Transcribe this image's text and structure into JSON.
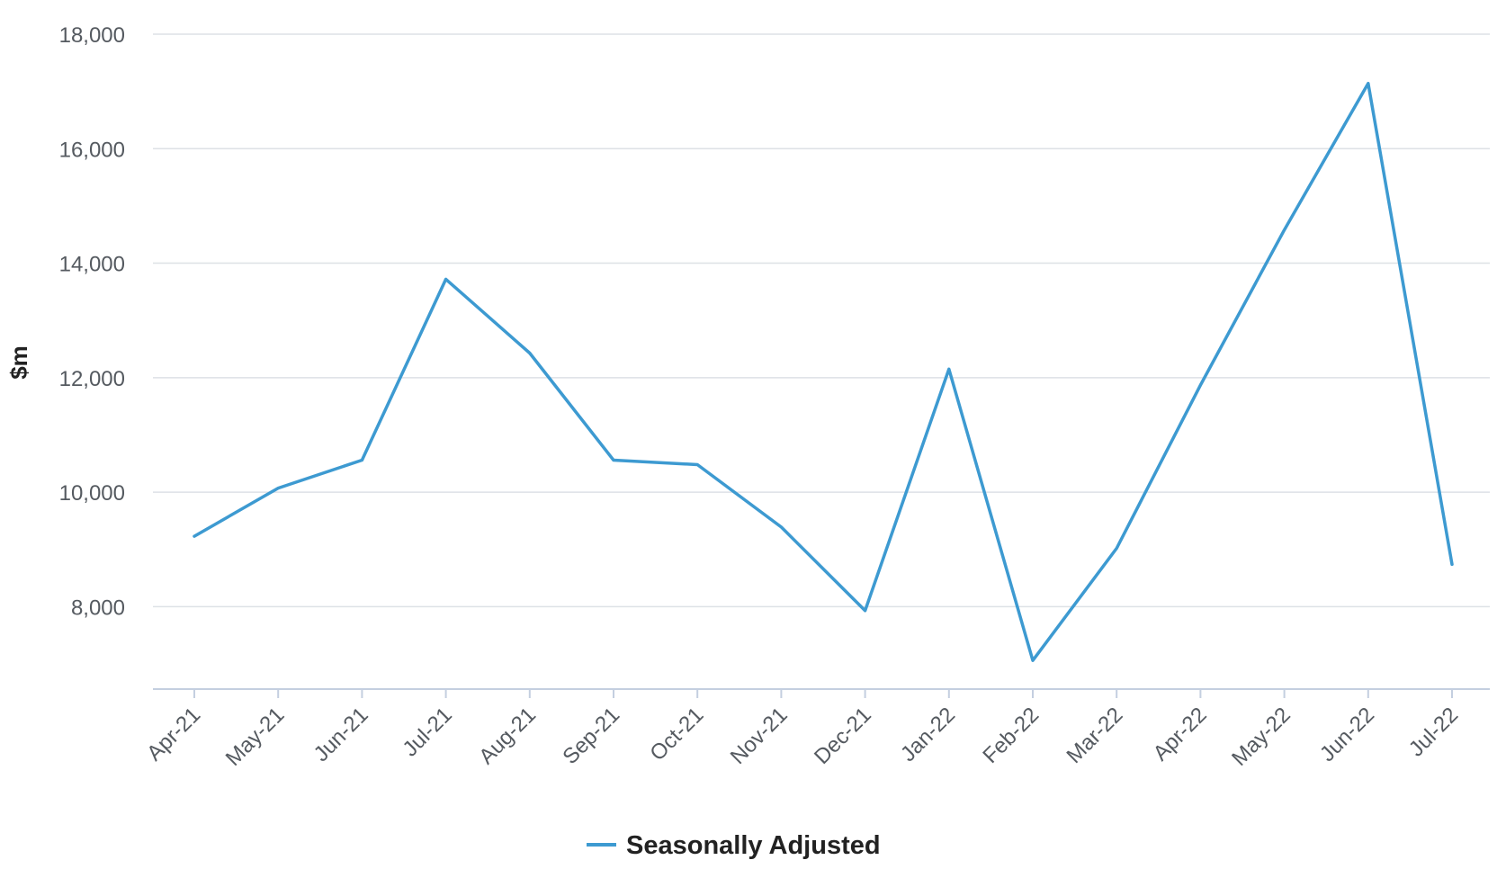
{
  "chart_data": {
    "type": "line",
    "categories": [
      "Apr-21",
      "May-21",
      "Jun-21",
      "Jul-21",
      "Aug-21",
      "Sep-21",
      "Oct-21",
      "Nov-21",
      "Dec-21",
      "Jan-22",
      "Feb-22",
      "Mar-22",
      "Apr-22",
      "May-22",
      "Jun-22",
      "Jul-22"
    ],
    "series": [
      {
        "name": "Seasonally Adjusted",
        "color": "#3d9ad1",
        "values": [
          9230,
          10070,
          10560,
          13720,
          12430,
          10560,
          10480,
          9390,
          7930,
          12150,
          7060,
          9020,
          11870,
          14580,
          17140,
          8740
        ]
      }
    ],
    "title": "",
    "xlabel": "",
    "ylabel": "$m",
    "ylim": [
      6560,
      18000
    ],
    "yticks": [
      8000,
      10000,
      12000,
      14000,
      16000,
      18000
    ],
    "ytick_labels": [
      "8,000",
      "10,000",
      "12,000",
      "14,000",
      "16,000",
      "18,000"
    ],
    "grid": true,
    "legend": "bottom-center",
    "colors": {
      "gridline": "#dde1e6",
      "axis": "#c4cfe0",
      "tick_text": "#555a60"
    }
  }
}
